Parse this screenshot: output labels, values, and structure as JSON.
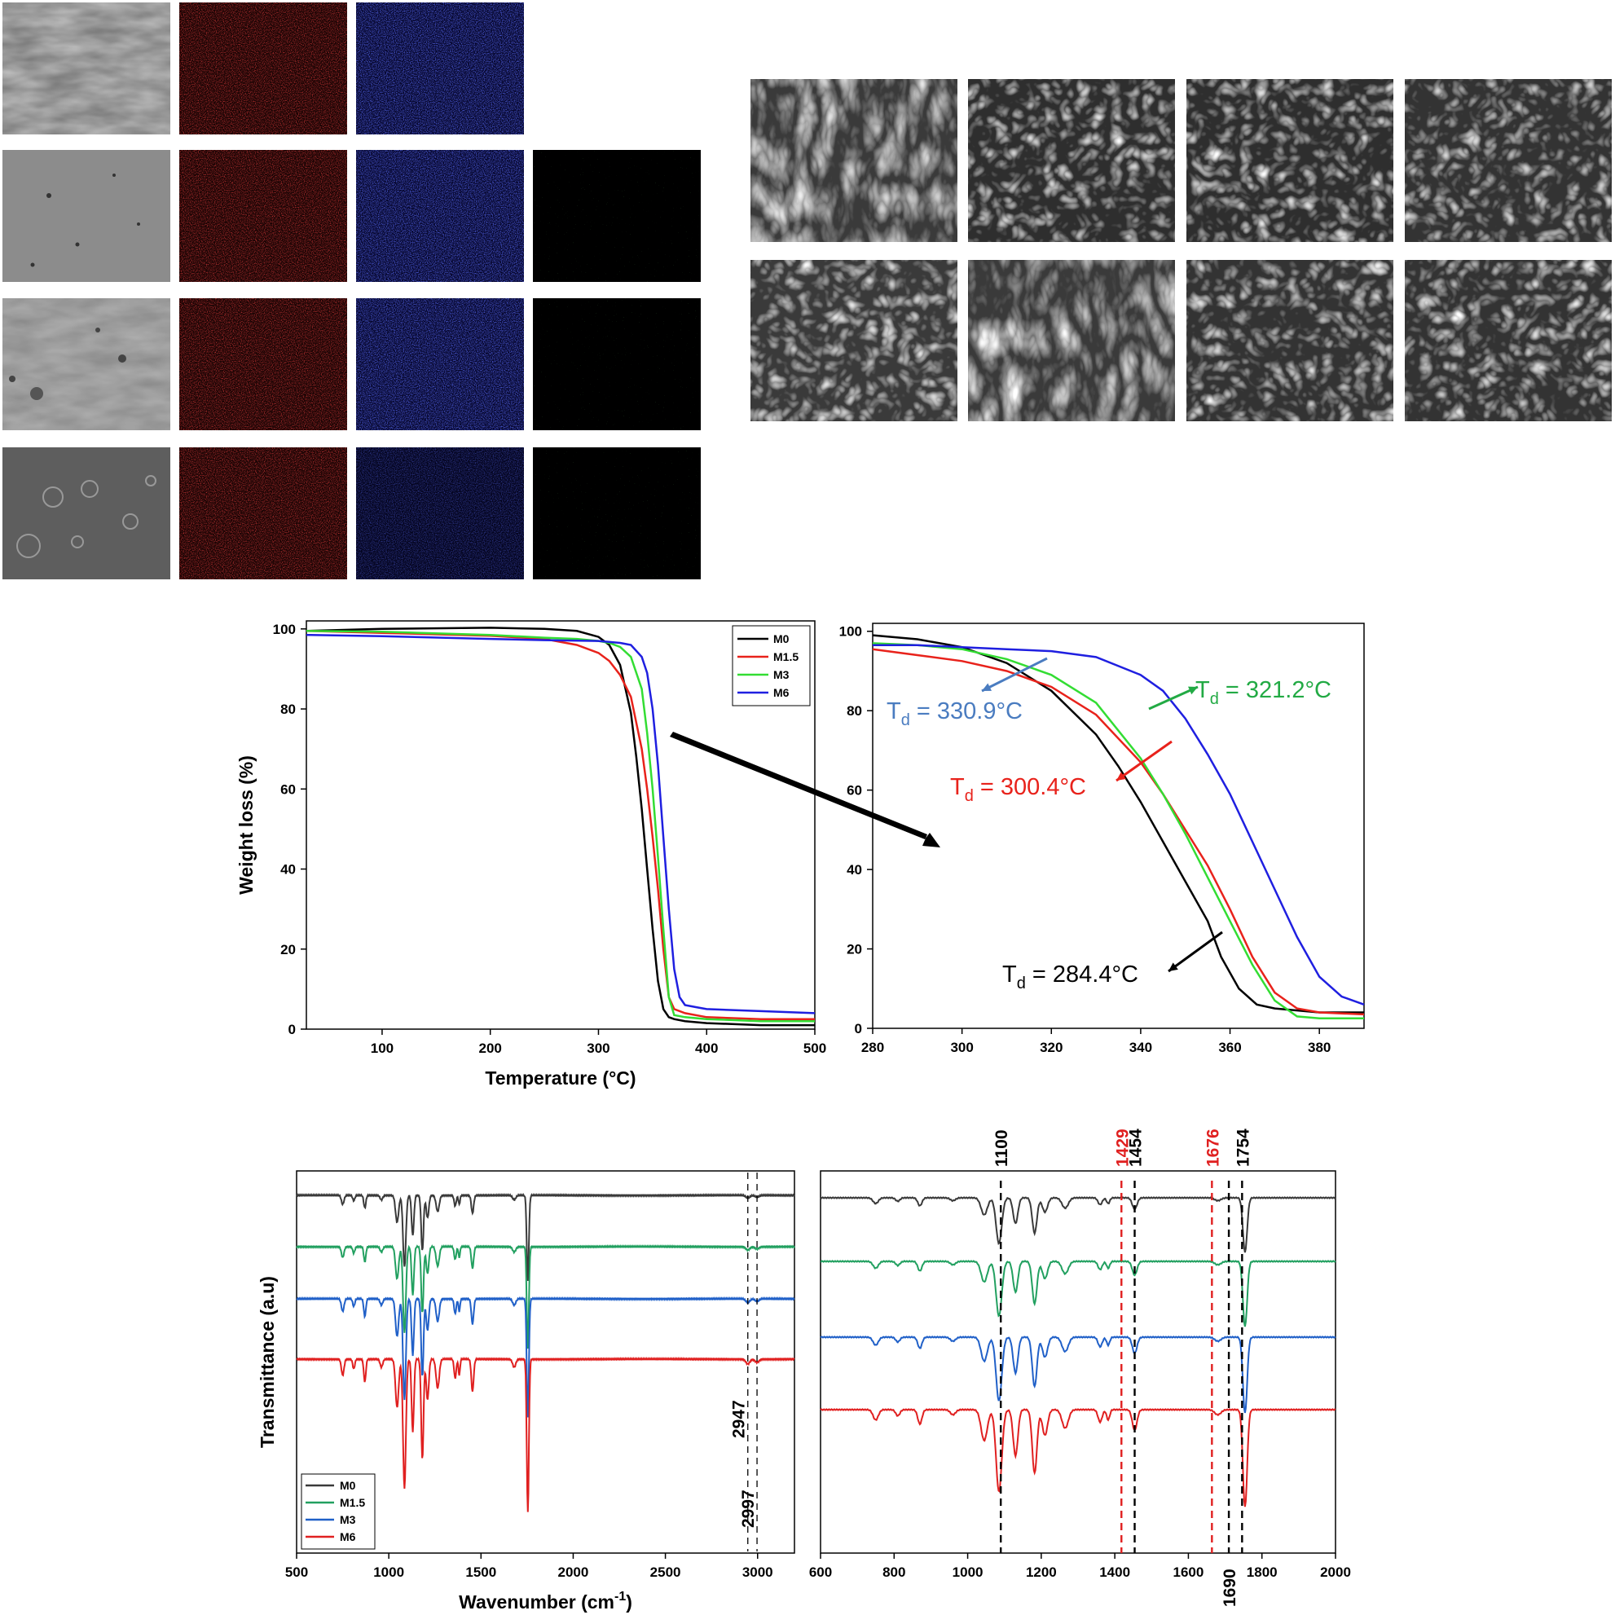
{
  "chart_data": [
    {
      "type": "line",
      "title": "",
      "xlabel": "Temperature (°C)",
      "ylabel": "Weight loss (%)",
      "xlim": [
        30,
        500
      ],
      "ylim": [
        0,
        102
      ],
      "x_ticks": [
        100,
        200,
        300,
        400,
        500
      ],
      "y_ticks": [
        0,
        20,
        40,
        60,
        80,
        100
      ],
      "legend_position": "top-right",
      "series": [
        {
          "name": "M0",
          "color": "#000000",
          "x": [
            30,
            100,
            200,
            250,
            280,
            300,
            310,
            320,
            330,
            335,
            340,
            345,
            350,
            355,
            360,
            365,
            370,
            380,
            400,
            450,
            500
          ],
          "y": [
            99.5,
            100,
            100.3,
            100,
            99.5,
            98,
            96,
            91,
            79,
            68,
            55,
            40,
            25,
            12,
            5,
            3,
            2.5,
            2,
            1.5,
            1,
            1
          ]
        },
        {
          "name": "M1.5",
          "color": "#e8221b",
          "x": [
            30,
            100,
            200,
            250,
            280,
            300,
            310,
            320,
            330,
            340,
            345,
            350,
            355,
            360,
            365,
            370,
            380,
            400,
            450,
            500
          ],
          "y": [
            99.5,
            99,
            98.3,
            97.5,
            96,
            94,
            92,
            88.5,
            83,
            70,
            60,
            48,
            35,
            20,
            8,
            5,
            4,
            3,
            2.5,
            2.5
          ]
        },
        {
          "name": "M3",
          "color": "#33dd33",
          "x": [
            30,
            100,
            200,
            250,
            280,
            300,
            310,
            320,
            330,
            340,
            345,
            350,
            355,
            360,
            365,
            370,
            380,
            400,
            450,
            500
          ],
          "y": [
            99.5,
            99.3,
            98.5,
            97.8,
            97.5,
            97,
            96.5,
            95.5,
            93,
            85,
            74,
            60,
            43,
            25,
            8,
            3.5,
            3,
            2.5,
            2,
            2
          ]
        },
        {
          "name": "M6",
          "color": "#1f1fe0",
          "x": [
            30,
            100,
            200,
            250,
            300,
            320,
            330,
            340,
            345,
            350,
            355,
            360,
            365,
            370,
            375,
            380,
            390,
            400,
            450,
            500
          ],
          "y": [
            98.5,
            98.2,
            97.5,
            97.2,
            97,
            96.5,
            96,
            93,
            89,
            80,
            66,
            48,
            30,
            15,
            8,
            6,
            5.5,
            5,
            4.5,
            4
          ]
        }
      ]
    },
    {
      "type": "line",
      "title": "",
      "xlabel": "",
      "ylabel": "",
      "xlim": [
        280,
        390
      ],
      "ylim": [
        0,
        100
      ],
      "x_ticks": [
        280,
        300,
        320,
        340,
        360,
        380
      ],
      "y_ticks": [
        0,
        20,
        40,
        60,
        80,
        100
      ],
      "series": [
        {
          "color": "#000000",
          "x": [
            280,
            290,
            300,
            310,
            320,
            330,
            335,
            340,
            345,
            350,
            355,
            358,
            362,
            366,
            370,
            380,
            390
          ],
          "y": [
            99,
            98,
            96,
            92,
            85,
            74,
            66,
            57,
            47,
            37,
            27,
            18,
            10,
            6,
            5,
            4,
            4
          ]
        },
        {
          "color": "#e8221b",
          "x": [
            280,
            290,
            300,
            310,
            320,
            330,
            340,
            345,
            350,
            355,
            360,
            365,
            370,
            375,
            380,
            390
          ],
          "y": [
            95.5,
            94,
            92.5,
            90,
            86,
            79,
            67,
            59,
            50,
            41,
            30,
            18,
            9,
            5,
            4,
            3.5
          ]
        },
        {
          "color": "#33dd33",
          "x": [
            280,
            290,
            300,
            310,
            320,
            330,
            340,
            345,
            350,
            355,
            360,
            365,
            370,
            375,
            380,
            390
          ],
          "y": [
            97,
            96.5,
            95.5,
            93,
            89,
            82,
            68,
            59,
            49,
            38,
            27,
            16,
            7,
            3,
            2.5,
            2.5
          ]
        },
        {
          "color": "#1f1fe0",
          "x": [
            280,
            290,
            300,
            310,
            320,
            330,
            340,
            345,
            350,
            355,
            360,
            365,
            370,
            375,
            380,
            385,
            390
          ],
          "y": [
            96.5,
            96.5,
            96,
            95.5,
            95,
            93.5,
            89,
            85,
            78,
            69,
            59,
            47,
            35,
            23,
            13,
            8,
            6
          ]
        }
      ],
      "annotations": [
        {
          "text": "T",
          "sub": "d",
          "value": " = 330.9°C",
          "color": "#4a7cc0"
        },
        {
          "text": "T",
          "sub": "d",
          "value": " = 321.2°C",
          "color": "#22aa44"
        },
        {
          "text": "T",
          "sub": "d",
          "value": " = 300.4°C",
          "color": "#e8221b"
        },
        {
          "text": "T",
          "sub": "d",
          "value": " = 284.4°C",
          "color": "#000000"
        }
      ]
    },
    {
      "type": "line",
      "title": "",
      "xlabel": "Wavenumber (cm",
      "xlabel_sup": "-1",
      "xlabel_end": ")",
      "ylabel": "Transmittance (a.u)",
      "xlim": [
        500,
        3200
      ],
      "x_ticks": [
        500,
        1000,
        1500,
        2000,
        2500,
        3000
      ],
      "legend_position": "bottom-left",
      "peak_lines": [
        "2947",
        "2997"
      ],
      "series": [
        {
          "name": "M0",
          "color": "#3a3a3a",
          "offset": 0,
          "scale": 1.0
        },
        {
          "name": "M1.5",
          "color": "#22a060",
          "offset": 1,
          "scale": 1.2
        },
        {
          "name": "M3",
          "color": "#2060c8",
          "offset": 2,
          "scale": 1.4
        },
        {
          "name": "M6",
          "color": "#e02020",
          "offset": 3,
          "scale": 1.8
        }
      ]
    },
    {
      "type": "line",
      "title": "",
      "xlabel": "",
      "ylabel": "",
      "xlim": [
        600,
        2000
      ],
      "x_ticks": [
        600,
        800,
        1000,
        1200,
        1400,
        1600,
        1800,
        2000
      ],
      "peak_lines": [
        {
          "label": "1100",
          "x": 1090,
          "color": "#000000"
        },
        {
          "label": "1429",
          "x": 1418,
          "color": "#e02020"
        },
        {
          "label": "1454",
          "x": 1454,
          "color": "#000000"
        },
        {
          "label": "1676",
          "x": 1664,
          "color": "#e02020"
        },
        {
          "label": "1690",
          "x": 1710,
          "color": "#000000"
        },
        {
          "label": "1754",
          "x": 1746,
          "color": "#000000"
        }
      ]
    }
  ]
}
